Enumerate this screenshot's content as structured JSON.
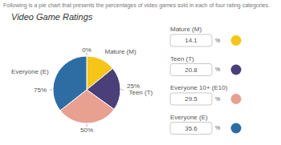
{
  "chart_data": {
    "type": "pie",
    "title": "Video Game Ratings",
    "subtitle": "Following is a pie chart that presents the percentages of video games sold in each of four rating categories.",
    "categories": [
      "Mature (M)",
      "Teen (T)",
      "Everyone 10+ (E10)",
      "Everyone (E)"
    ],
    "values": [
      14.1,
      20.8,
      29.5,
      35.6
    ],
    "colors": [
      "#F5C518",
      "#4B3F7A",
      "#E8A090",
      "#2E6DA4"
    ],
    "slice_labels": [
      "Mature (M)",
      "Teen (T)",
      null,
      "Everyone (E)"
    ],
    "ticks": [
      {
        "value": 0,
        "label": "0%"
      },
      {
        "value": 25,
        "label": "25%"
      },
      {
        "value": 50,
        "label": "50%"
      },
      {
        "value": 75,
        "label": "75%"
      }
    ],
    "unit": "%",
    "legend": "right"
  }
}
